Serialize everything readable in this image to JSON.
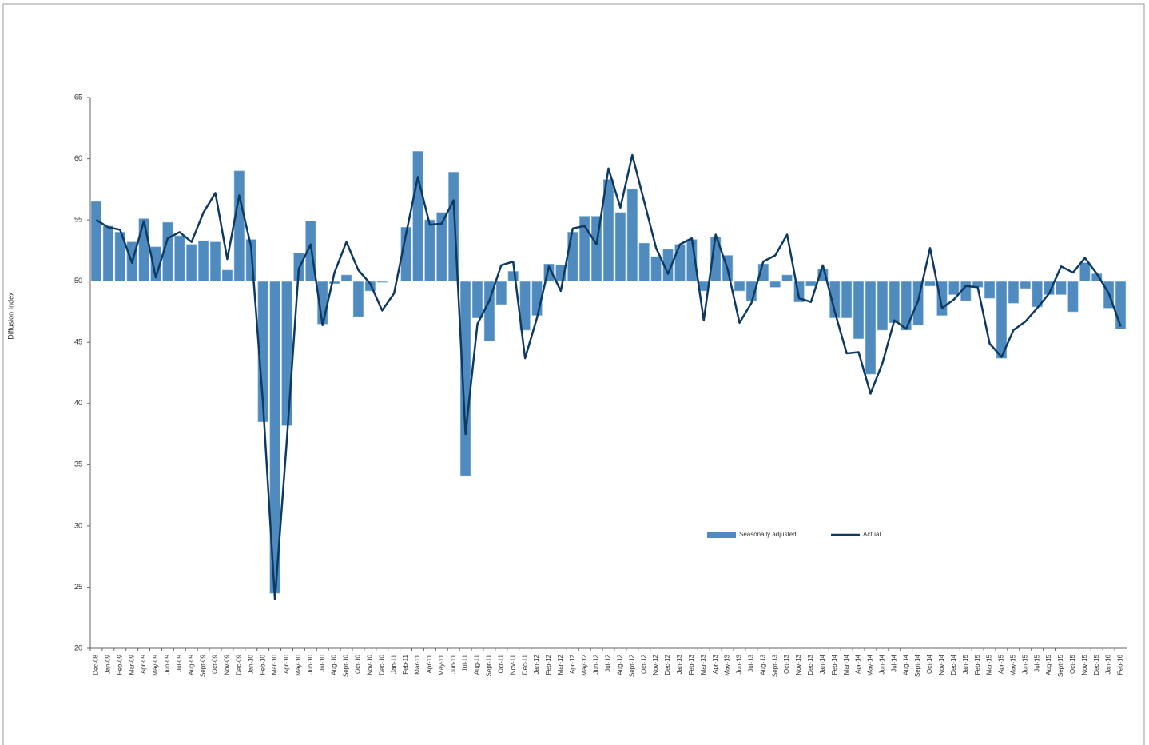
{
  "chart_data": {
    "type": "bar_line",
    "y_label": "Diffusion Index",
    "categories": [
      "Dec-08",
      "Jan-09",
      "Feb-09",
      "Mar-09",
      "Apr-09",
      "May-09",
      "Jun-09",
      "Jul-09",
      "Aug-09",
      "Sept-09",
      "Oct-09",
      "Nov-09",
      "Dec-09",
      "Jan-10",
      "Feb-10",
      "Mar-10",
      "Apr-10",
      "May-10",
      "Jun-10",
      "Jul-10",
      "Aug-10",
      "Sept-10",
      "Oct-10",
      "Nov-10",
      "Dec-10",
      "Jan-11",
      "Feb-11",
      "Mar-11",
      "Apr-11",
      "May-11",
      "Jun-11",
      "Jul-11",
      "Aug-11",
      "Sept-11",
      "Oct-11",
      "Nov-11",
      "Dec-11",
      "Jan-12",
      "Feb-12",
      "Mar-12",
      "Apr-12",
      "May-12",
      "Jun-12",
      "Jul-12",
      "Aug-12",
      "Sept-12",
      "Oct-12",
      "Nov-12",
      "Dec-12",
      "Jan-13",
      "Feb-13",
      "Mar-13",
      "Apr-13",
      "May-13",
      "Jun-13",
      "Jul-13",
      "Aug-13",
      "Sept-13",
      "Oct-13",
      "Nov-13",
      "Dec-13",
      "Jan-14",
      "Feb-14",
      "Mar-14",
      "Apr-14",
      "May-14",
      "Jun-14",
      "Jul-14",
      "Aug-14",
      "Sept-14",
      "Oct-14",
      "Nov-14",
      "Dec-14",
      "Jan-15",
      "Feb-15",
      "Mar-15",
      "Apr-15",
      "May-15",
      "Jun-15",
      "Jul-15",
      "Aug-15",
      "Sept-15",
      "Oct-15",
      "Nov-15",
      "Dec-15",
      "Jan-16",
      "Feb-16"
    ],
    "series": [
      {
        "name": "Seasonally adjusted",
        "type": "bar",
        "color": "#4f8bbf",
        "values": [
          56.5,
          54.5,
          54,
          53.2,
          55.1,
          52.8,
          54.8,
          53.7,
          53,
          53.3,
          53.2,
          50.9,
          59,
          53.4,
          38.5,
          24.5,
          38.2,
          52.3,
          54.9,
          46.5,
          49.8,
          50.5,
          47.1,
          49.2,
          49.9,
          50,
          54.4,
          60.6,
          55,
          55.6,
          58.9,
          34.1,
          47,
          45.1,
          48.1,
          50.8,
          46,
          47.2,
          51.4,
          51.3,
          54,
          55.3,
          55.3,
          58.3,
          55.6,
          57.5,
          53.1,
          52,
          52.6,
          53,
          53.4,
          49.2,
          53.6,
          52.1,
          49.2,
          48.4,
          51.4,
          49.5,
          50.5,
          48.3,
          49.6,
          51,
          47,
          47,
          45.3,
          42.4,
          46,
          46.6,
          46,
          46.4,
          49.6,
          47.2,
          48.9,
          48.4,
          49.5,
          48.6,
          43.7,
          48.2,
          49.4,
          47.9,
          48.9,
          48.9,
          47.5,
          51.5,
          50.6,
          47.8,
          46.1
        ]
      },
      {
        "name": "Actual",
        "type": "line",
        "color": "#0d3a63",
        "values": [
          55,
          54.4,
          54.2,
          51.5,
          54.9,
          50.3,
          53.5,
          54,
          53.2,
          55.6,
          57.2,
          51.8,
          57,
          52.8,
          40,
          24,
          37,
          51,
          53,
          46.4,
          50.7,
          53.2,
          50.9,
          49.8,
          47.6,
          49,
          53.8,
          58.5,
          54.6,
          54.7,
          56.6,
          37.5,
          46.5,
          48.4,
          51.3,
          51.6,
          43.7,
          47,
          51.2,
          49.2,
          54.3,
          54.5,
          53,
          59.2,
          56,
          60.3,
          56.5,
          52.7,
          50.6,
          53,
          53.5,
          46.8,
          53.8,
          51,
          46.6,
          48.2,
          51.6,
          52.1,
          53.8,
          48.6,
          48.3,
          51.3,
          47.5,
          44.1,
          44.2,
          40.8,
          43.3,
          46.8,
          46.1,
          48.4,
          52.7,
          47.8,
          48.5,
          49.6,
          49.5,
          44.9,
          43.8,
          46,
          46.7,
          47.8,
          49,
          51.2,
          50.7,
          51.9,
          50.6,
          49,
          46.3
        ]
      }
    ],
    "bar_base": 50,
    "ylim": [
      20,
      65
    ],
    "yticks": [
      20,
      25,
      30,
      35,
      40,
      45,
      50,
      55,
      60,
      65
    ],
    "legend": "center-right"
  }
}
